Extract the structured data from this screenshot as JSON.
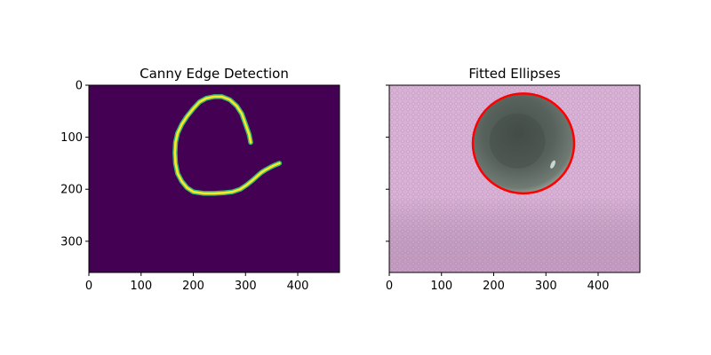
{
  "chart_data": [
    {
      "type": "image",
      "title": "Canny Edge Detection",
      "xticks": [
        0,
        100,
        200,
        300,
        400
      ],
      "yticks": [
        0,
        100,
        200,
        300
      ],
      "xlim": [
        0,
        480
      ],
      "ylim": [
        360,
        0
      ],
      "show_yticklabels": true,
      "colors": {
        "background": "#440154",
        "edge": "#fde725",
        "edge_halo": "#35b779"
      },
      "edge_polyline": [
        [
          310,
          110
        ],
        [
          307,
          95
        ],
        [
          300,
          75
        ],
        [
          293,
          55
        ],
        [
          283,
          40
        ],
        [
          270,
          28
        ],
        [
          255,
          22
        ],
        [
          240,
          22
        ],
        [
          225,
          25
        ],
        [
          212,
          32
        ],
        [
          200,
          45
        ],
        [
          188,
          60
        ],
        [
          178,
          75
        ],
        [
          170,
          92
        ],
        [
          166,
          110
        ],
        [
          165,
          130
        ],
        [
          166,
          150
        ],
        [
          170,
          170
        ],
        [
          178,
          185
        ],
        [
          188,
          197
        ],
        [
          200,
          205
        ],
        [
          220,
          208
        ],
        [
          240,
          208
        ],
        [
          258,
          207
        ],
        [
          275,
          205
        ],
        [
          290,
          200
        ],
        [
          302,
          192
        ],
        [
          313,
          183
        ],
        [
          322,
          175
        ],
        [
          330,
          168
        ],
        [
          338,
          163
        ],
        [
          347,
          158
        ],
        [
          355,
          154
        ],
        [
          365,
          150
        ]
      ]
    },
    {
      "type": "image",
      "title": "Fitted Ellipses",
      "xticks": [
        0,
        100,
        200,
        300,
        400
      ],
      "yticks": [
        0,
        100,
        200,
        300
      ],
      "xlim": [
        0,
        480
      ],
      "ylim": [
        360,
        0
      ],
      "show_yticklabels": false,
      "colors": {
        "background": "#d9b2d6",
        "bowl": "#5c655f",
        "bowl_inner": "#4a524d",
        "ellipse": "#ff0000"
      },
      "ellipse": {
        "cx": 257,
        "cy": 112,
        "rx": 97,
        "ry": 96
      }
    }
  ]
}
